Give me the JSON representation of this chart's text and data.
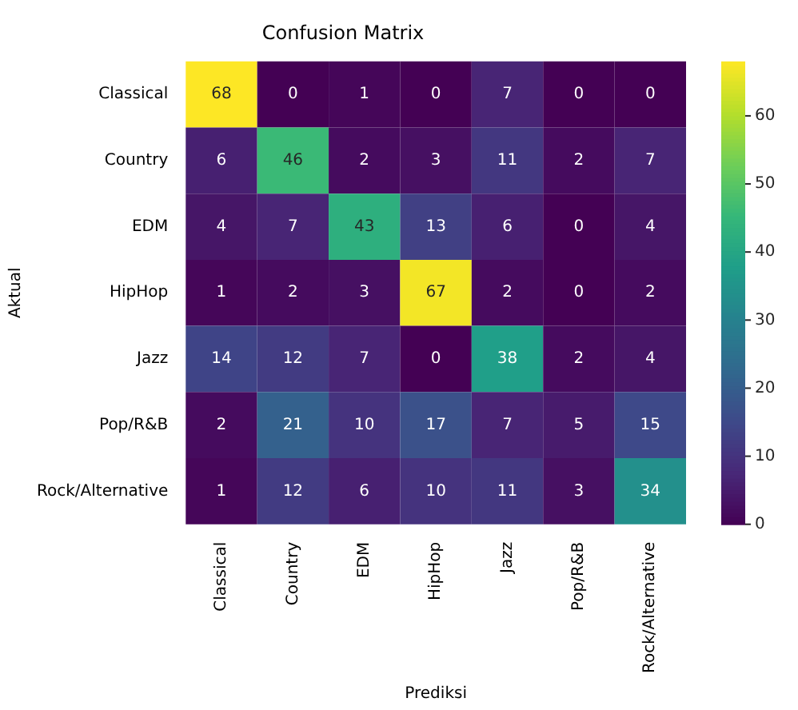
{
  "chart_data": {
    "type": "heatmap",
    "title": "Confusion Matrix",
    "xlabel": "Prediksi",
    "ylabel": "Aktual",
    "categories": [
      "Classical",
      "Country",
      "EDM",
      "HipHop",
      "Jazz",
      "Pop/R&B",
      "Rock/Alternative"
    ],
    "y_categories": [
      "Classical",
      "Country",
      "EDM",
      "HipHop",
      "Jazz",
      "Pop/R&B",
      "Rock/Alternative"
    ],
    "cells": [
      [
        68,
        0,
        1,
        0,
        7,
        0,
        0
      ],
      [
        6,
        46,
        2,
        3,
        11,
        2,
        7
      ],
      [
        4,
        7,
        43,
        13,
        6,
        0,
        4
      ],
      [
        1,
        2,
        3,
        67,
        2,
        0,
        2
      ],
      [
        14,
        12,
        7,
        0,
        38,
        2,
        4
      ],
      [
        2,
        21,
        10,
        17,
        7,
        5,
        15
      ],
      [
        1,
        12,
        6,
        10,
        11,
        3,
        34
      ]
    ],
    "data_labels": true,
    "clim": [
      0,
      68
    ],
    "cticks": [
      0,
      10,
      20,
      30,
      40,
      50,
      60
    ]
  }
}
